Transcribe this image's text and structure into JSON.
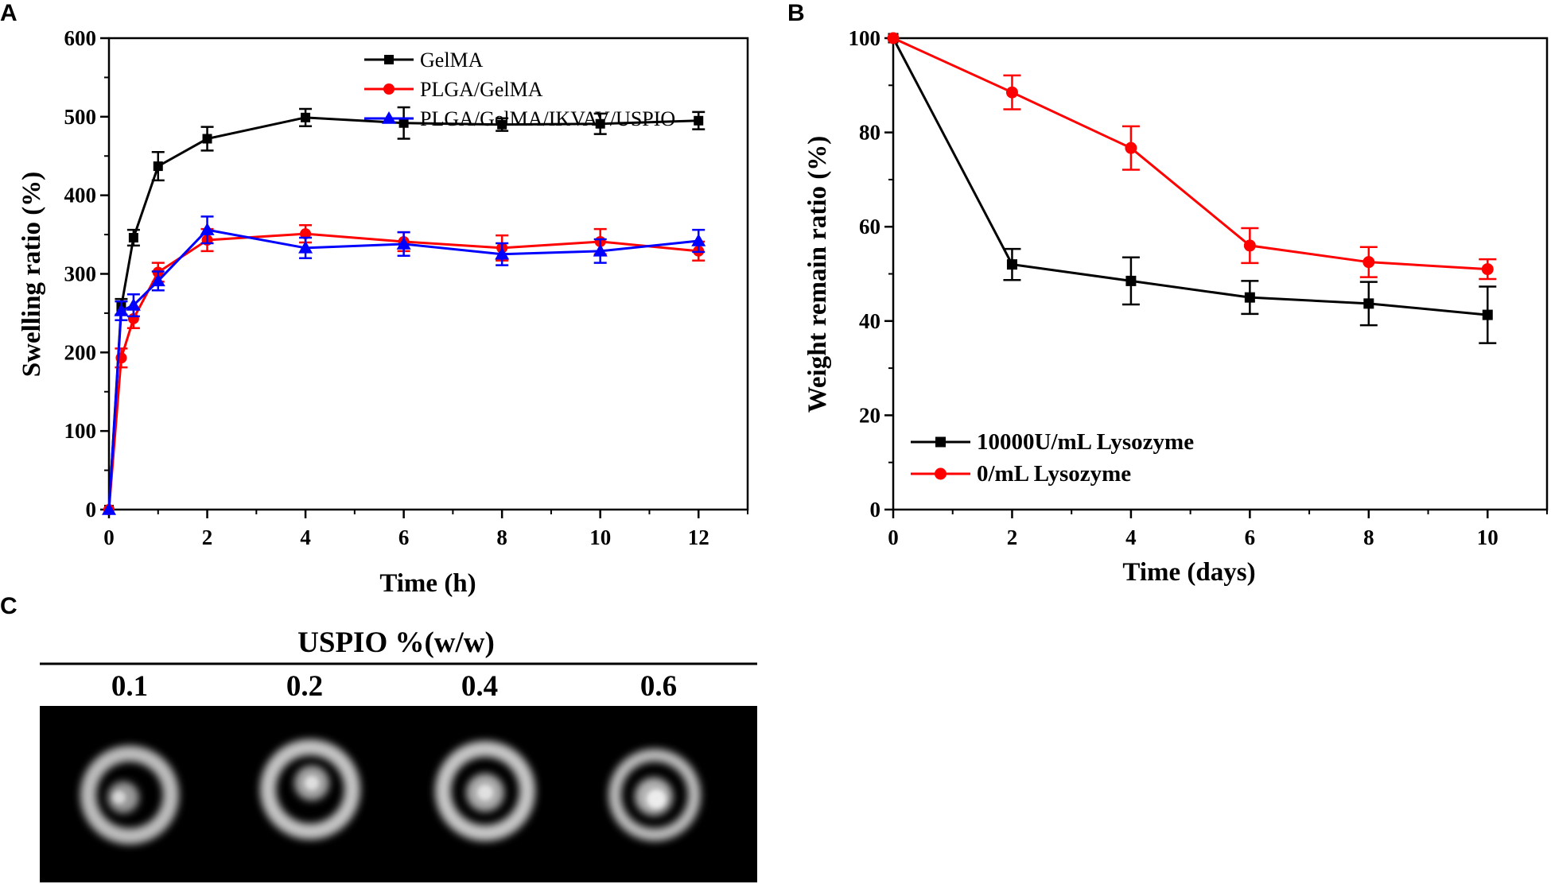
{
  "chart_data": [
    {
      "panel": "A",
      "type": "line",
      "xlabel": "Time (h)",
      "ylabel": "Swelling ratio (%)",
      "xlim": [
        0,
        13
      ],
      "ylim": [
        0,
        600
      ],
      "xticks": [
        0,
        2,
        4,
        6,
        8,
        10,
        12
      ],
      "yticks": [
        0,
        100,
        200,
        300,
        400,
        500,
        600
      ],
      "legend_position": "top-right",
      "series": [
        {
          "name": "GelMA",
          "color": "#000000",
          "marker": "square",
          "x": [
            0,
            0.25,
            0.5,
            1,
            2,
            4,
            6,
            8,
            10,
            12
          ],
          "values": [
            0,
            258,
            346,
            437,
            472,
            499,
            492,
            490,
            491,
            495
          ],
          "errors": [
            0,
            10,
            10,
            18,
            15,
            11,
            20,
            8,
            13,
            11
          ]
        },
        {
          "name": "PLGA/GelMA",
          "color": "#ff0000",
          "marker": "circle",
          "x": [
            0,
            0.25,
            0.5,
            1,
            2,
            4,
            6,
            8,
            10,
            12
          ],
          "values": [
            0,
            193,
            243,
            302,
            343,
            351,
            341,
            333,
            341,
            329
          ],
          "errors": [
            0,
            12,
            12,
            12,
            14,
            11,
            12,
            16,
            16,
            12
          ]
        },
        {
          "name": "PLGA/GelMA/IKVAV/USPIO",
          "color": "#0000ff",
          "marker": "triangle",
          "x": [
            0,
            0.25,
            0.5,
            1,
            2,
            4,
            6,
            8,
            10,
            12
          ],
          "values": [
            0,
            253,
            260,
            291,
            356,
            333,
            338,
            325,
            329,
            342
          ],
          "errors": [
            0,
            12,
            14,
            12,
            17,
            13,
            15,
            14,
            15,
            14
          ]
        }
      ]
    },
    {
      "panel": "B",
      "type": "line",
      "xlabel": "Time (days)",
      "ylabel": "Weight remain ratio (%)",
      "xlim": [
        0,
        11
      ],
      "ylim": [
        0,
        100
      ],
      "xticks": [
        0,
        2,
        4,
        6,
        8,
        10
      ],
      "yticks": [
        0,
        20,
        40,
        60,
        80,
        100
      ],
      "legend_position": "bottom-left",
      "series": [
        {
          "name": "10000U/mL Lysozyme",
          "color": "#000000",
          "marker": "square",
          "x": [
            0,
            2,
            4,
            6,
            8,
            10
          ],
          "values": [
            100,
            52,
            48.5,
            45,
            43.7,
            41.3
          ],
          "errors": [
            0,
            3.3,
            5,
            3.5,
            4.6,
            6
          ]
        },
        {
          "name": "0/mL Lysozyme",
          "color": "#ff0000",
          "marker": "circle",
          "x": [
            0,
            2,
            4,
            6,
            8,
            10
          ],
          "values": [
            100,
            88.5,
            76.7,
            56,
            52.5,
            51
          ],
          "errors": [
            0,
            3.6,
            4.6,
            3.7,
            3.2,
            2.1
          ]
        }
      ]
    }
  ],
  "panel_c": {
    "letter": "C",
    "title": "USPIO %(w/w)",
    "labels": [
      "0.1",
      "0.2",
      "0.4",
      "0.6"
    ]
  }
}
